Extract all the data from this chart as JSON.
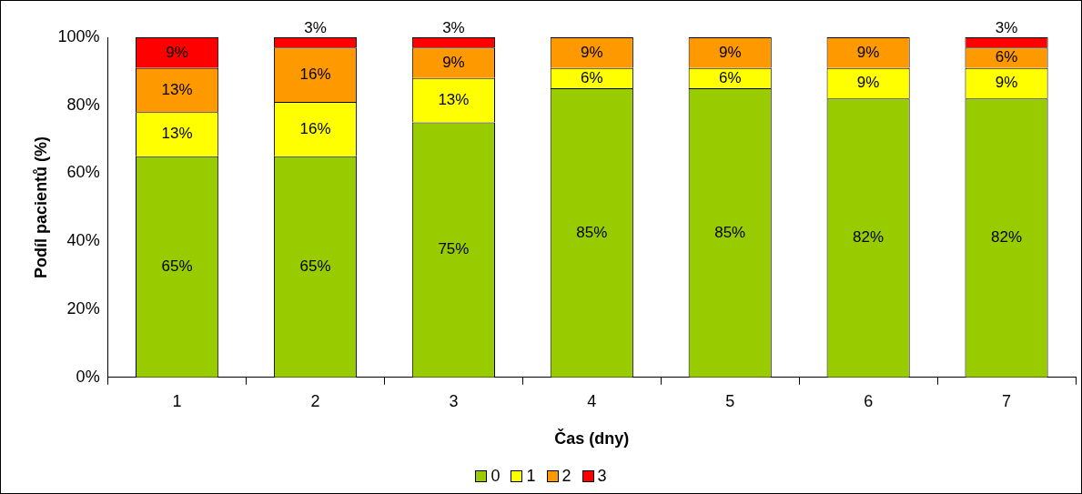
{
  "chart_data": {
    "type": "bar",
    "stacked": true,
    "xlabel": "Čas (dny)",
    "ylabel": "Podíl pacientů (%)",
    "categories": [
      "1",
      "2",
      "3",
      "4",
      "5",
      "6",
      "7"
    ],
    "series": [
      {
        "name": "0",
        "color": "#99cc00",
        "values": [
          65,
          65,
          75,
          85,
          85,
          82,
          82
        ],
        "value_labels": [
          "65%",
          "65%",
          "75%",
          "85%",
          "85%",
          "82%",
          "82%"
        ]
      },
      {
        "name": "1",
        "color": "#ffff00",
        "values": [
          13,
          16,
          13,
          6,
          6,
          9,
          9
        ],
        "value_labels": [
          "13%",
          "16%",
          "13%",
          "6%",
          "6%",
          "9%",
          "9%"
        ]
      },
      {
        "name": "2",
        "color": "#ff9900",
        "values": [
          13,
          16,
          9,
          9,
          9,
          9,
          6
        ],
        "value_labels": [
          "13%",
          "16%",
          "9%",
          "9%",
          "9%",
          "9%",
          "6%"
        ]
      },
      {
        "name": "3",
        "color": "#ff0000",
        "values": [
          9,
          3,
          3,
          null,
          null,
          null,
          3
        ],
        "value_labels": [
          "9%",
          "3%",
          "3%",
          null,
          null,
          null,
          "3%"
        ]
      }
    ],
    "ylim": [
      0,
      100
    ],
    "yticks": [
      {
        "value": 0,
        "label": "0%"
      },
      {
        "value": 20,
        "label": "20%"
      },
      {
        "value": 40,
        "label": "40%"
      },
      {
        "value": 60,
        "label": "60%"
      },
      {
        "value": 80,
        "label": "80%"
      },
      {
        "value": 100,
        "label": "100%"
      }
    ],
    "grid": false,
    "legend": "bottom"
  }
}
